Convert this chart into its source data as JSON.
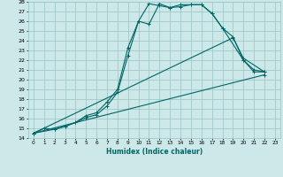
{
  "xlabel": "Humidex (Indice chaleur)",
  "bg_color": "#cce8e8",
  "grid_color": "#a0c8c8",
  "line_color": "#006666",
  "xlim": [
    -0.5,
    23.5
  ],
  "ylim": [
    14,
    28
  ],
  "xtick_labels": [
    "0",
    "1",
    "2",
    "3",
    "4",
    "5",
    "6",
    "7",
    "8",
    "9",
    "10",
    "11",
    "12",
    "13",
    "14",
    "15",
    "16",
    "17",
    "18",
    "19",
    "20",
    "21",
    "22",
    "23"
  ],
  "xtick_vals": [
    0,
    1,
    2,
    3,
    4,
    5,
    6,
    7,
    8,
    9,
    10,
    11,
    12,
    13,
    14,
    15,
    16,
    17,
    18,
    19,
    20,
    21,
    22,
    23
  ],
  "ytick_vals": [
    14,
    15,
    16,
    17,
    18,
    19,
    20,
    21,
    22,
    23,
    24,
    25,
    26,
    27,
    28
  ],
  "series": [
    {
      "x": [
        0,
        1,
        2,
        3,
        4,
        5,
        6,
        7,
        8,
        9,
        10,
        11,
        12,
        13,
        14,
        15,
        16,
        17,
        18,
        19,
        20,
        21,
        22
      ],
      "y": [
        14.5,
        15.0,
        14.9,
        15.2,
        15.6,
        16.3,
        16.6,
        17.7,
        19.0,
        23.3,
        26.0,
        25.7,
        27.8,
        27.4,
        27.5,
        27.7,
        27.7,
        26.8,
        25.3,
        24.4,
        22.0,
        20.8,
        20.8
      ],
      "marker": "+"
    },
    {
      "x": [
        0,
        2,
        3,
        4,
        5,
        6,
        7,
        8,
        9,
        10,
        11,
        12,
        13,
        14,
        15,
        16,
        17,
        18,
        20,
        21,
        22
      ],
      "y": [
        14.5,
        14.9,
        15.2,
        15.6,
        16.1,
        16.4,
        17.3,
        18.7,
        22.5,
        26.0,
        27.8,
        27.6,
        27.4,
        27.7,
        27.7,
        27.7,
        26.8,
        25.3,
        22.0,
        21.0,
        20.8
      ],
      "marker": "+"
    },
    {
      "x": [
        0,
        19,
        20,
        22
      ],
      "y": [
        14.5,
        24.3,
        22.2,
        20.8
      ],
      "marker": "+"
    },
    {
      "x": [
        0,
        22
      ],
      "y": [
        14.5,
        20.5
      ],
      "marker": "+"
    }
  ]
}
